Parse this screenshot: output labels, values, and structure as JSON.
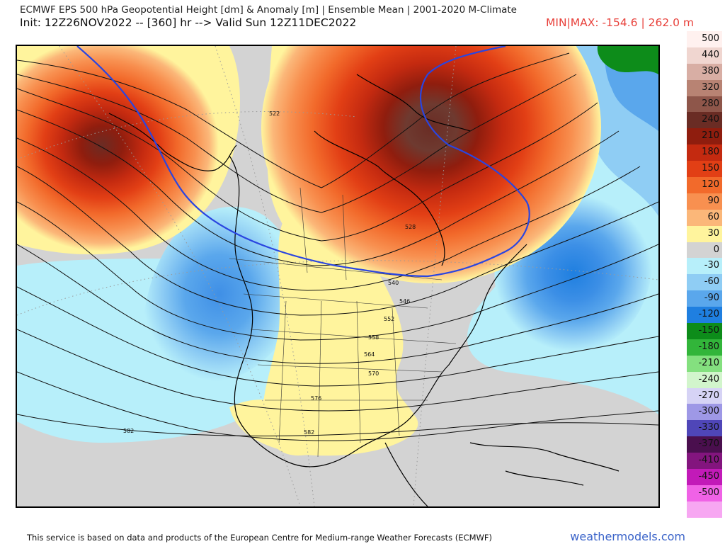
{
  "header": {
    "title": "ECMWF EPS 500 hPa Geopotential Height [dm] & Anomaly [m] | Ensemble Mean | 2001-2020 M-Climate",
    "init_line": "Init: 12Z26NOV2022 -- [360] hr --> Valid Sun 12Z11DEC2022",
    "minmax": "MIN|MAX: -154.6 | 262.0 m"
  },
  "map": {
    "contour_labels": [
      "522",
      "546",
      "552",
      "558",
      "564",
      "570",
      "576",
      "582",
      "582",
      "540",
      "528"
    ]
  },
  "legend": {
    "unit": "m",
    "entries": [
      {
        "label": "500",
        "color": "#fff1ef"
      },
      {
        "label": "440",
        "color": "#f0d6d0"
      },
      {
        "label": "380",
        "color": "#d8aea4"
      },
      {
        "label": "320",
        "color": "#b88373"
      },
      {
        "label": "280",
        "color": "#8e564a"
      },
      {
        "label": "240",
        "color": "#6a2c24"
      },
      {
        "label": "210",
        "color": "#8f1d0e"
      },
      {
        "label": "180",
        "color": "#c42a10"
      },
      {
        "label": "150",
        "color": "#e23f15"
      },
      {
        "label": "120",
        "color": "#f26a2b"
      },
      {
        "label": "90",
        "color": "#f89050"
      },
      {
        "label": "60",
        "color": "#fbb779"
      },
      {
        "label": "30",
        "color": "#fff49d"
      },
      {
        "label": "0",
        "color": "#d3d3d3"
      },
      {
        "label": "-30",
        "color": "#b7effa"
      },
      {
        "label": "-60",
        "color": "#8fcdf4"
      },
      {
        "label": "-90",
        "color": "#5aa7ec"
      },
      {
        "label": "-120",
        "color": "#1f7fe0"
      },
      {
        "label": "-150",
        "color": "#0d8c1a"
      },
      {
        "label": "-180",
        "color": "#32b53a"
      },
      {
        "label": "-210",
        "color": "#84e07f"
      },
      {
        "label": "-240",
        "color": "#d2f5cc"
      },
      {
        "label": "-270",
        "color": "#d6d3f5"
      },
      {
        "label": "-300",
        "color": "#9e98e6"
      },
      {
        "label": "-330",
        "color": "#4f46b8"
      },
      {
        "label": "-370",
        "color": "#4a0f4e"
      },
      {
        "label": "-410",
        "color": "#83157e"
      },
      {
        "label": "-450",
        "color": "#c21ab8"
      },
      {
        "label": "-500",
        "color": "#f062e6"
      },
      {
        "label": "",
        "color": "#f7a7f2"
      }
    ]
  },
  "footer": {
    "credit": "This service is based on data and products of the European Centre for Medium-range Weather Forecasts (ECMWF)",
    "brand": "weathermodels.com"
  }
}
